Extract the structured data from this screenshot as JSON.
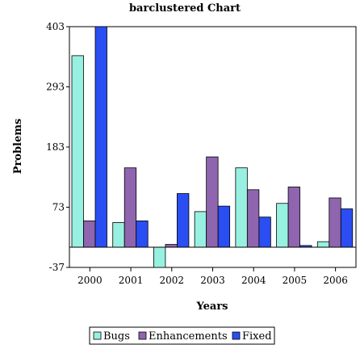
{
  "chart_data": {
    "type": "bar",
    "title": "barclustered Chart",
    "xlabel": "Years",
    "ylabel": "Problems",
    "categories": [
      "2000",
      "2001",
      "2002",
      "2003",
      "2004",
      "2005",
      "2006"
    ],
    "series": [
      {
        "name": "Bugs",
        "color": "#98F0E0",
        "values": [
          350,
          45,
          -37,
          65,
          145,
          80,
          10
        ]
      },
      {
        "name": "Enhancements",
        "color": "#8E65AE",
        "values": [
          48,
          145,
          5,
          165,
          105,
          110,
          90
        ]
      },
      {
        "name": "Fixed",
        "color": "#2A4EF2",
        "values": [
          403,
          48,
          98,
          75,
          55,
          3,
          70
        ]
      }
    ],
    "yticks": [
      403,
      293,
      183,
      73,
      -37
    ],
    "ylim": [
      -37,
      403
    ],
    "grid": false,
    "legend_position": "bottom"
  }
}
